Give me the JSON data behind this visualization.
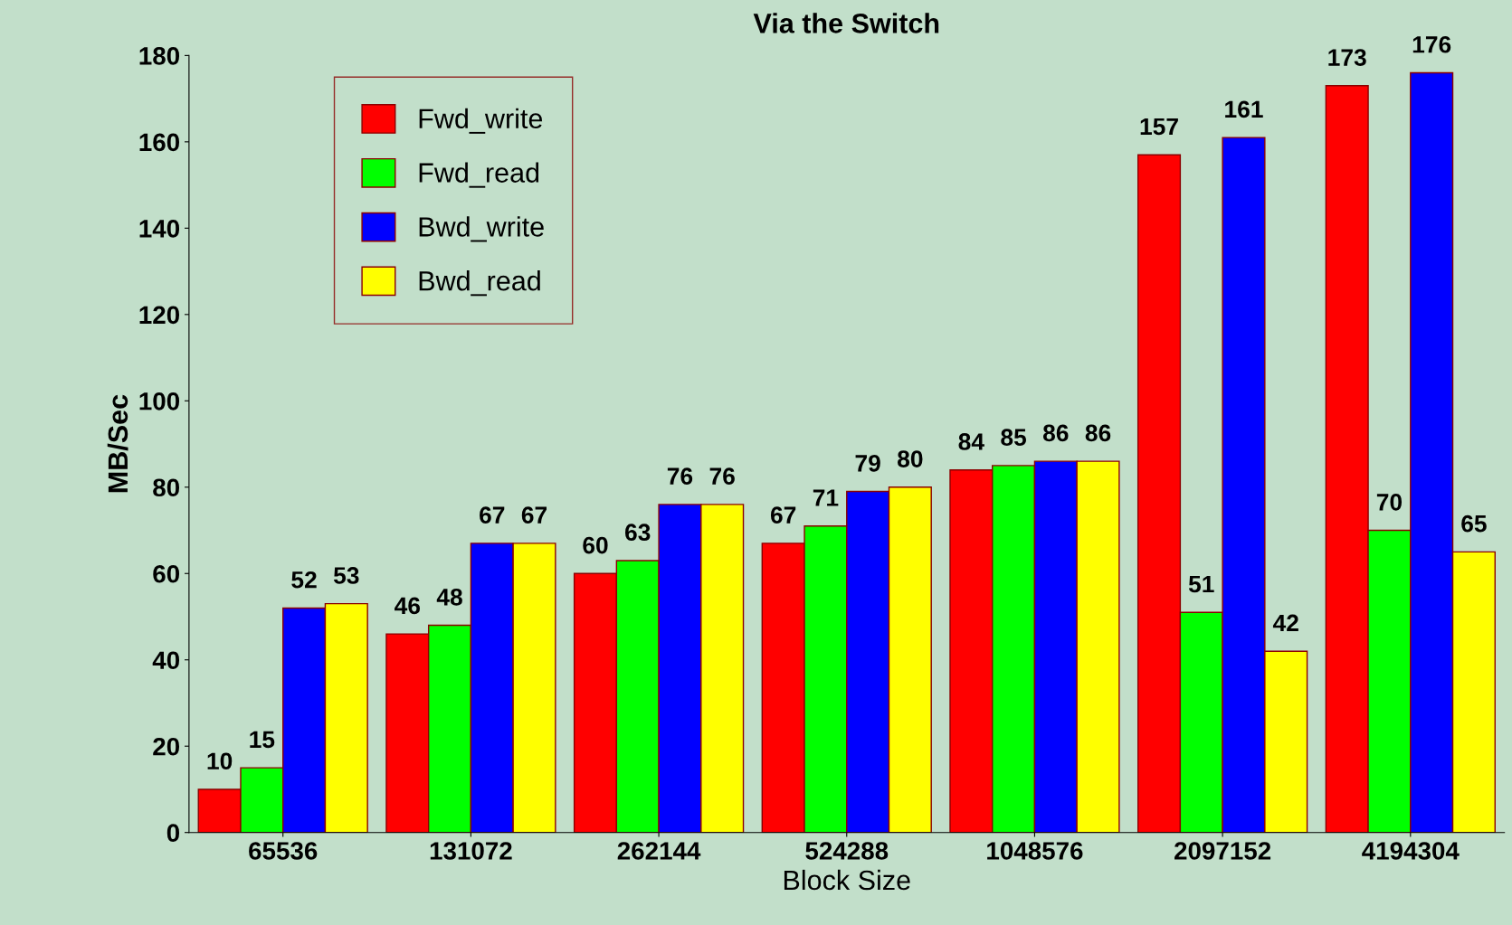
{
  "chart_data": {
    "type": "bar",
    "title": "Via the Switch",
    "xlabel": "Block Size",
    "ylabel": "MB/Sec",
    "categories": [
      "65536",
      "131072",
      "262144",
      "524288",
      "1048576",
      "2097152",
      "4194304"
    ],
    "series": [
      {
        "name": "Fwd_write",
        "color": "#ff0000",
        "values": [
          10,
          46,
          60,
          67,
          84,
          157,
          173
        ]
      },
      {
        "name": "Fwd_read",
        "color": "#00ff00",
        "values": [
          15,
          48,
          63,
          71,
          85,
          51,
          70
        ]
      },
      {
        "name": "Bwd_write",
        "color": "#0000ff",
        "values": [
          52,
          67,
          76,
          79,
          86,
          161,
          176
        ]
      },
      {
        "name": "Bwd_read",
        "color": "#ffff00",
        "values": [
          53,
          67,
          76,
          80,
          86,
          42,
          65
        ]
      }
    ],
    "ylim": [
      0,
      180
    ],
    "yticks": [
      0,
      20,
      40,
      60,
      80,
      100,
      120,
      140,
      160,
      180
    ],
    "data_labels": true,
    "legend": "top left",
    "grid": false
  }
}
